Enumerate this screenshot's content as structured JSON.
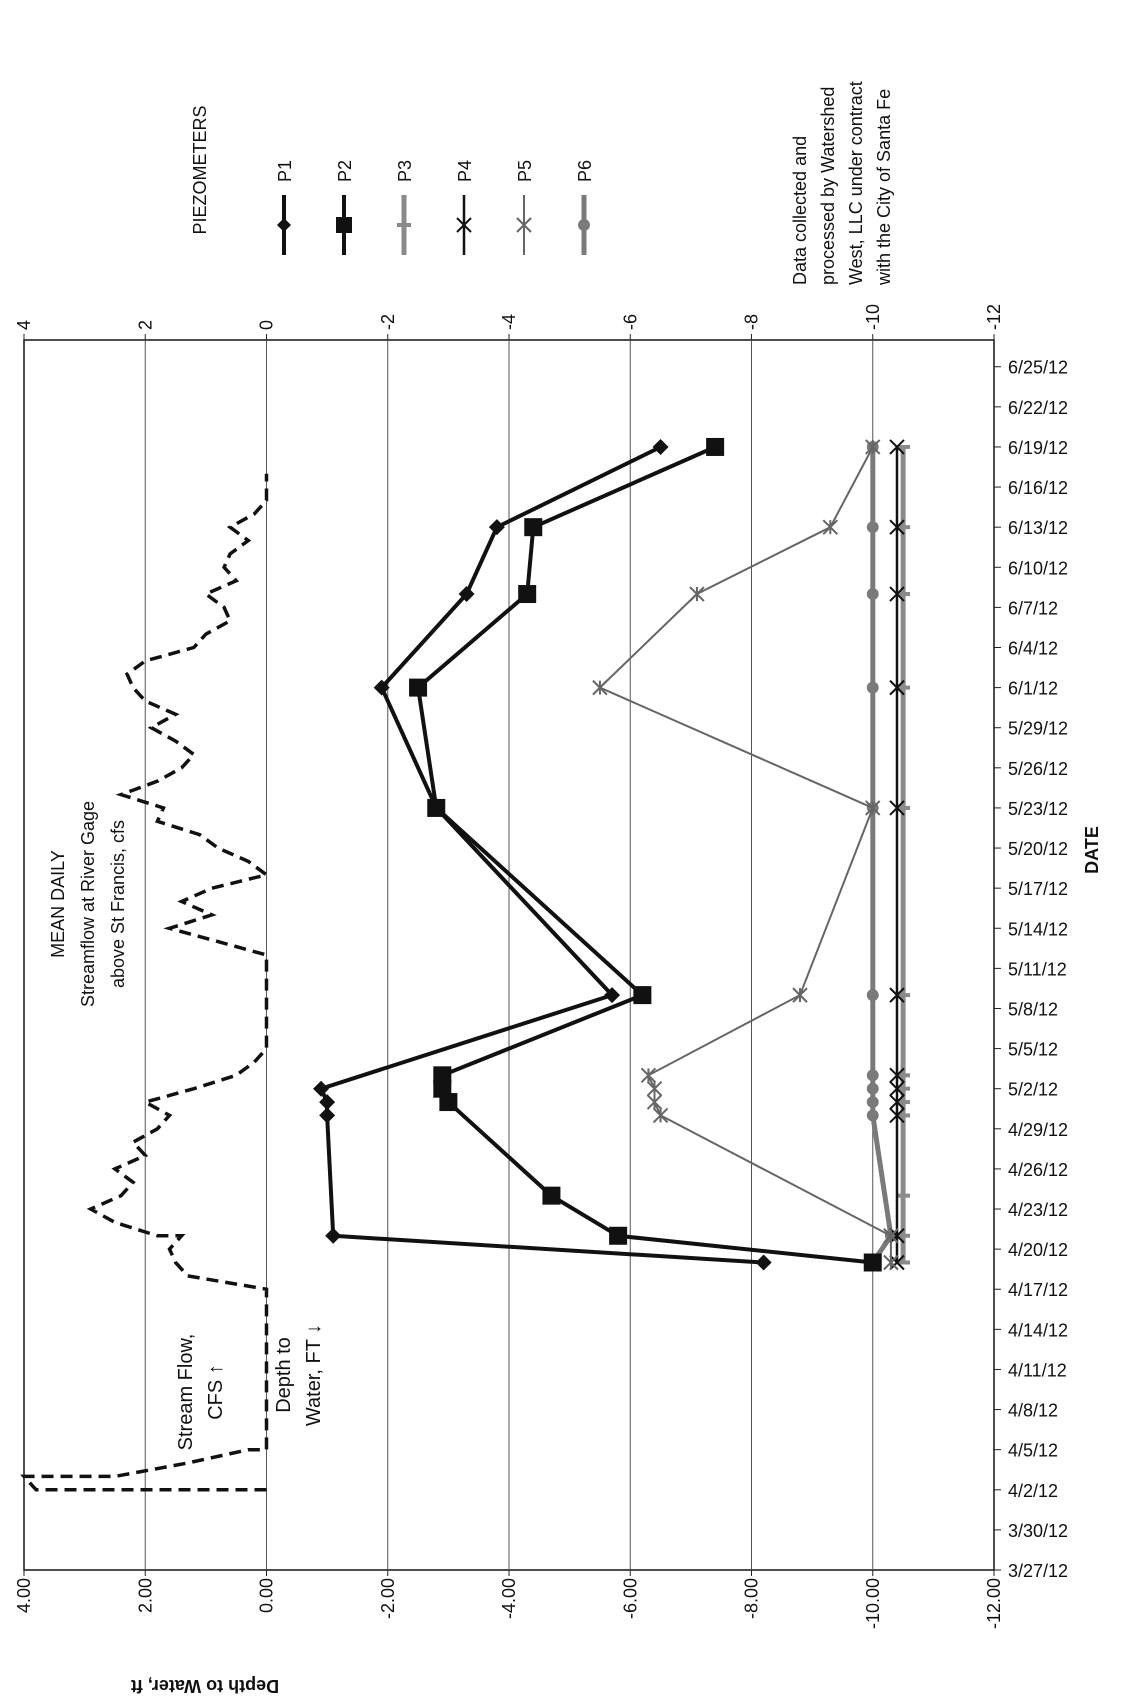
{
  "chart_data": {
    "type": "line",
    "xlabel": "DATE",
    "ylabel": "Depth to Water, ft",
    "x_ticks": [
      "3/27/12",
      "3/30/12",
      "4/2/12",
      "4/5/12",
      "4/8/12",
      "4/11/12",
      "4/14/12",
      "4/17/12",
      "4/20/12",
      "4/23/12",
      "4/26/12",
      "4/29/12",
      "5/2/12",
      "5/5/12",
      "5/8/12",
      "5/11/12",
      "5/14/12",
      "5/17/12",
      "5/20/12",
      "5/23/12",
      "5/26/12",
      "5/29/12",
      "6/1/12",
      "6/4/12",
      "6/7/12",
      "6/10/12",
      "6/13/12",
      "6/16/12",
      "6/19/12",
      "6/22/12",
      "6/25/12"
    ],
    "xlim": [
      "2012-03-27",
      "2012-06-27"
    ],
    "left_axis": {
      "ticks": [
        "4.00",
        "2.00",
        "0.00",
        "-2.00",
        "-4.00",
        "-6.00",
        "-8.00",
        "-10.00",
        "-12.00"
      ],
      "ylim": [
        -12,
        4
      ]
    },
    "right_axis": {
      "ticks": [
        "4",
        "2",
        "0",
        "-2",
        "-4",
        "-6",
        "-8",
        "-10",
        "-12"
      ],
      "ylim": [
        -12,
        4
      ]
    },
    "grid": true,
    "legend_title": "PIEZOMETERS",
    "legend_placement": "right",
    "annotations": {
      "mean_daily": [
        "MEAN DAILY",
        "Streamflow at River Gage",
        "above St Francis, cfs"
      ],
      "stream_flow": [
        "Stream Flow,",
        "CFS ↑"
      ],
      "depth_to_water": [
        "Depth to",
        "Water, FT ↓"
      ],
      "credit": [
        "Data collected and",
        "processed by Watershed",
        "West, LLC under contract",
        "with the City of Santa Fe"
      ]
    },
    "series": [
      {
        "name": "P1",
        "marker": "diamond",
        "color": "#111111",
        "x": [
          "2012-04-19",
          "2012-04-21",
          "2012-04-30",
          "2012-05-01",
          "2012-05-02",
          "2012-05-09",
          "2012-05-23",
          "2012-06-01",
          "2012-06-08",
          "2012-06-13",
          "2012-06-19"
        ],
        "y": [
          -8.2,
          -1.1,
          -1.0,
          -1.0,
          -0.9,
          -5.7,
          -2.8,
          -1.9,
          -3.3,
          -3.8,
          -6.5
        ]
      },
      {
        "name": "P2",
        "marker": "square",
        "color": "#111111",
        "x": [
          "2012-04-19",
          "2012-04-21",
          "2012-04-24",
          "2012-05-01",
          "2012-05-02",
          "2012-05-03",
          "2012-05-09",
          "2012-05-23",
          "2012-06-01",
          "2012-06-08",
          "2012-06-13",
          "2012-06-19"
        ],
        "y": [
          -10.0,
          -5.8,
          -4.7,
          -3.0,
          -2.9,
          -2.9,
          -6.2,
          -2.8,
          -2.5,
          -4.3,
          -4.4,
          -7.4
        ]
      },
      {
        "name": "P3",
        "marker": "dash",
        "color": "#8a8a8a",
        "x": [
          "2012-04-19",
          "2012-04-21",
          "2012-04-24",
          "2012-04-30",
          "2012-05-01",
          "2012-05-02",
          "2012-05-03",
          "2012-05-09",
          "2012-05-23",
          "2012-06-01",
          "2012-06-08",
          "2012-06-13",
          "2012-06-19"
        ],
        "y": [
          -10.5,
          -10.5,
          -10.5,
          -10.5,
          -10.5,
          -10.5,
          -10.5,
          -10.5,
          -10.5,
          -10.5,
          -10.5,
          -10.5,
          -10.5
        ]
      },
      {
        "name": "P4",
        "marker": "x",
        "color": "#111111",
        "x": [
          "2012-04-19",
          "2012-04-21",
          "2012-04-30",
          "2012-05-01",
          "2012-05-02",
          "2012-05-03",
          "2012-05-09",
          "2012-05-23",
          "2012-06-01",
          "2012-06-08",
          "2012-06-13",
          "2012-06-19"
        ],
        "y": [
          -10.4,
          -10.4,
          -10.4,
          -10.4,
          -10.4,
          -10.4,
          -10.4,
          -10.4,
          -10.4,
          -10.4,
          -10.4,
          -10.4
        ]
      },
      {
        "name": "P5",
        "marker": "star",
        "color": "#666666",
        "x": [
          "2012-04-19",
          "2012-04-21",
          "2012-04-30",
          "2012-05-01",
          "2012-05-02",
          "2012-05-03",
          "2012-05-09",
          "2012-05-23",
          "2012-06-01",
          "2012-06-08",
          "2012-06-13",
          "2012-06-19"
        ],
        "y": [
          -10.3,
          -10.3,
          -6.5,
          -6.4,
          -6.4,
          -6.3,
          -8.8,
          -10.0,
          -5.5,
          -7.1,
          -9.3,
          -10.0
        ]
      },
      {
        "name": "P6",
        "marker": "circle",
        "color": "#7a7a7a",
        "x": [
          "2012-04-19",
          "2012-04-21",
          "2012-04-30",
          "2012-05-01",
          "2012-05-02",
          "2012-05-03",
          "2012-05-09",
          "2012-05-23",
          "2012-06-01",
          "2012-06-08",
          "2012-06-13",
          "2012-06-19"
        ],
        "y": [
          -10.0,
          -10.3,
          -10.0,
          -10.0,
          -10.0,
          -10.0,
          -10.0,
          -10.0,
          -10.0,
          -10.0,
          -10.0,
          -10.0
        ]
      }
    ],
    "streamflow": {
      "style": "dashed",
      "units": "cfs",
      "x": [
        "2012-04-02",
        "2012-04-02",
        "2012-04-03",
        "2012-04-03",
        "2012-04-04",
        "2012-04-05",
        "2012-04-05",
        "2012-04-17",
        "2012-04-18",
        "2012-04-19",
        "2012-04-20",
        "2012-04-21",
        "2012-04-21",
        "2012-04-22",
        "2012-04-23",
        "2012-04-24",
        "2012-04-25",
        "2012-04-26",
        "2012-04-27",
        "2012-04-28",
        "2012-04-29",
        "2012-04-30",
        "2012-05-01",
        "2012-05-02",
        "2012-05-03",
        "2012-05-04",
        "2012-05-05",
        "2012-05-12",
        "2012-05-13",
        "2012-05-14",
        "2012-05-15",
        "2012-05-16",
        "2012-05-17",
        "2012-05-18",
        "2012-05-19",
        "2012-05-20",
        "2012-05-21",
        "2012-05-22",
        "2012-05-23",
        "2012-05-24",
        "2012-05-25",
        "2012-05-26",
        "2012-05-27",
        "2012-05-28",
        "2012-05-29",
        "2012-05-30",
        "2012-05-31",
        "2012-06-01",
        "2012-06-02",
        "2012-06-03",
        "2012-06-04",
        "2012-06-05",
        "2012-06-06",
        "2012-06-07",
        "2012-06-08",
        "2012-06-09",
        "2012-06-10",
        "2012-06-11",
        "2012-06-12",
        "2012-06-13",
        "2012-06-14",
        "2012-06-15",
        "2012-06-16",
        "2012-06-17"
      ],
      "y": [
        0.0,
        3.8,
        4.0,
        2.5,
        1.3,
        0.3,
        0.0,
        0.0,
        1.3,
        1.5,
        1.6,
        1.4,
        1.8,
        2.5,
        2.9,
        2.4,
        2.2,
        2.5,
        2.0,
        2.2,
        1.8,
        1.6,
        2.0,
        1.2,
        0.5,
        0.2,
        0.0,
        0.0,
        0.8,
        1.6,
        0.9,
        1.4,
        0.9,
        0.0,
        0.3,
        0.8,
        1.1,
        1.8,
        1.7,
        2.4,
        1.8,
        1.4,
        1.2,
        1.5,
        1.9,
        1.5,
        2.0,
        2.2,
        2.3,
        2.0,
        1.2,
        1.0,
        0.6,
        0.7,
        1.0,
        0.5,
        0.7,
        0.6,
        0.3,
        0.6,
        0.2,
        0.0,
        0.0,
        0.0
      ]
    }
  }
}
